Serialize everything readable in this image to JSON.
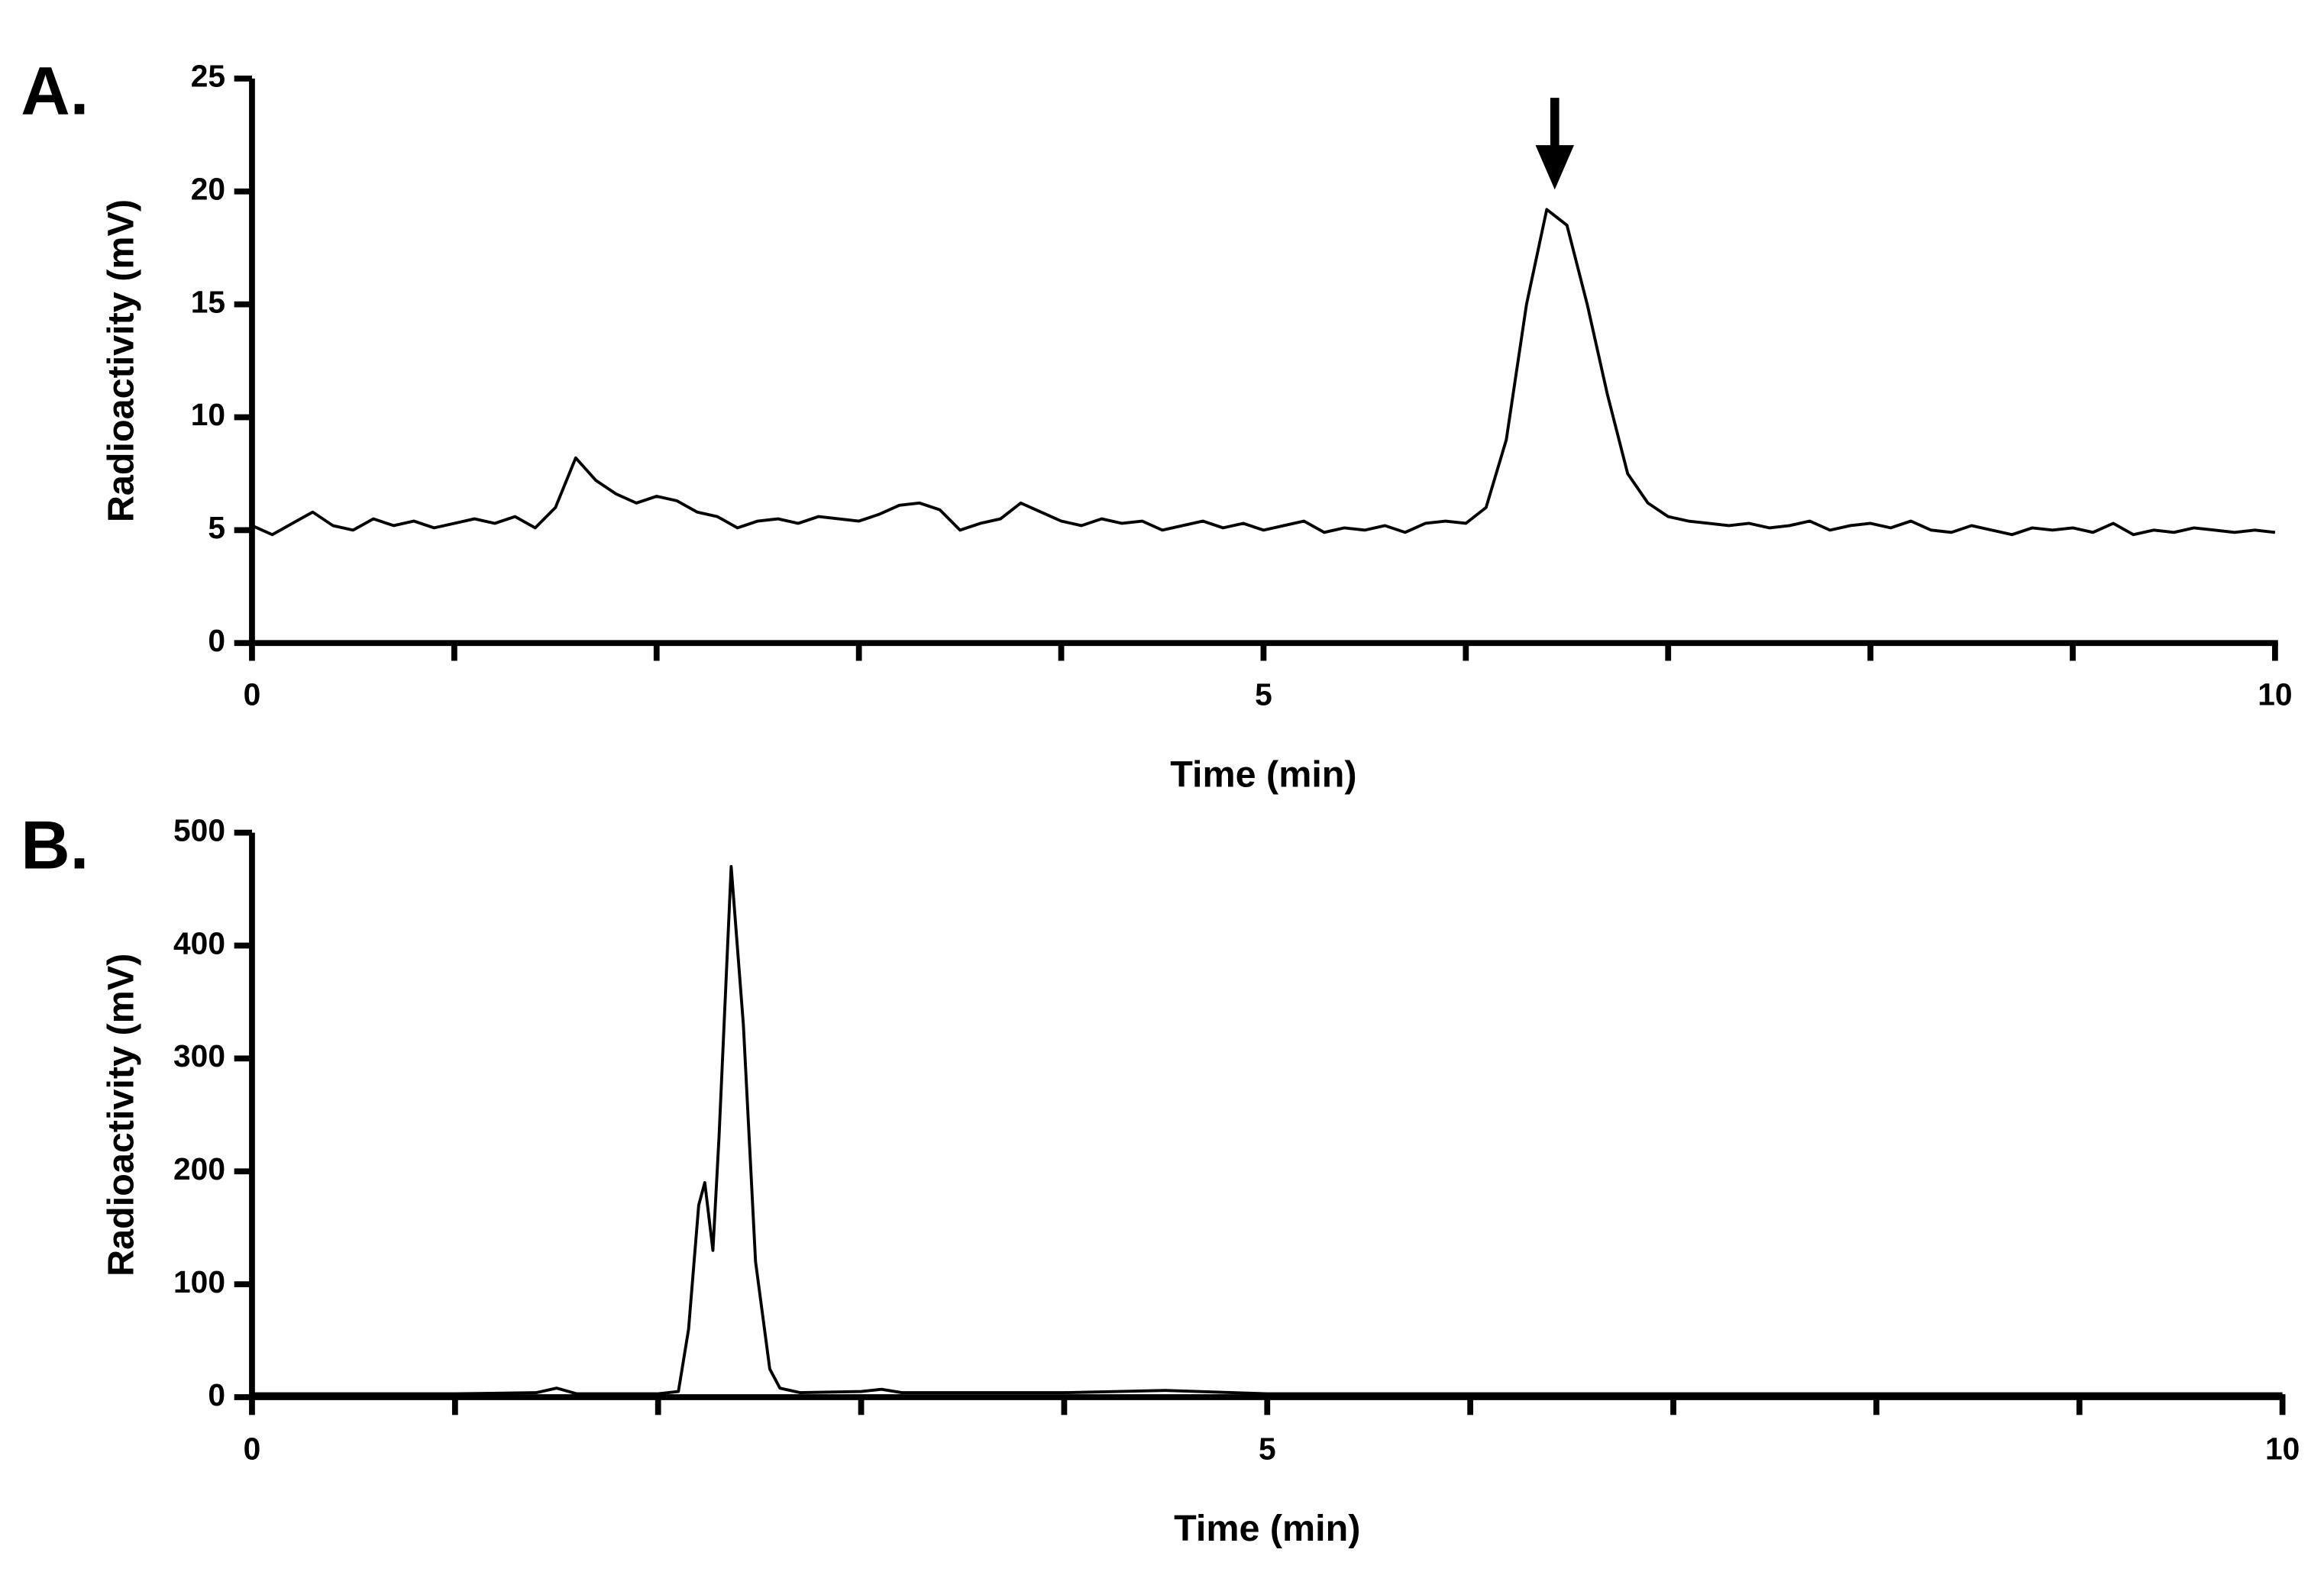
{
  "chart_data": [
    {
      "type": "line",
      "panel_label": "A.",
      "x_label": "Time (min)",
      "y_label": "Radioactivity (mV)",
      "xlim": [
        0,
        10
      ],
      "ylim": [
        0,
        25
      ],
      "xticks": [
        0,
        5,
        10
      ],
      "x_minor_ticks": [
        1,
        2,
        3,
        4,
        6,
        7,
        8,
        9
      ],
      "yticks": [
        0,
        5,
        10,
        15,
        20,
        25
      ],
      "series": [
        {
          "color": "#000000",
          "x": [
            0,
            0.1,
            0.2,
            0.3,
            0.4,
            0.5,
            0.6,
            0.7,
            0.8,
            0.9,
            1,
            1.1,
            1.2,
            1.3,
            1.4,
            1.5,
            1.6,
            1.7,
            1.8,
            1.9,
            2,
            2.1,
            2.2,
            2.3,
            2.4,
            2.5,
            2.6,
            2.7,
            2.8,
            2.9,
            3,
            3.1,
            3.2,
            3.3,
            3.4,
            3.5,
            3.6,
            3.7,
            3.8,
            3.9,
            4,
            4.1,
            4.2,
            4.3,
            4.4,
            4.5,
            4.6,
            4.7,
            4.8,
            4.9,
            5,
            5.1,
            5.2,
            5.3,
            5.4,
            5.5,
            5.6,
            5.7,
            5.8,
            5.9,
            6,
            6.1,
            6.2,
            6.3,
            6.4,
            6.5,
            6.6,
            6.7,
            6.8,
            6.9,
            7,
            7.1,
            7.2,
            7.3,
            7.4,
            7.5,
            7.6,
            7.7,
            7.8,
            7.9,
            8,
            8.1,
            8.2,
            8.3,
            8.4,
            8.5,
            8.6,
            8.7,
            8.8,
            8.9,
            9,
            9.1,
            9.2,
            9.3,
            9.4,
            9.5,
            9.6,
            9.7,
            9.8,
            9.9,
            10
          ],
          "values": [
            5.2,
            4.8,
            5.3,
            5.8,
            5.2,
            5.0,
            5.5,
            5.2,
            5.4,
            5.1,
            5.3,
            5.5,
            5.3,
            5.6,
            5.1,
            6.0,
            8.2,
            7.2,
            6.6,
            6.2,
            6.5,
            6.3,
            5.8,
            5.6,
            5.1,
            5.4,
            5.5,
            5.3,
            5.6,
            5.5,
            5.4,
            5.7,
            6.1,
            6.2,
            5.9,
            5.0,
            5.3,
            5.5,
            6.2,
            5.8,
            5.4,
            5.2,
            5.5,
            5.3,
            5.4,
            5.0,
            5.2,
            5.4,
            5.1,
            5.3,
            5.0,
            5.2,
            5.4,
            4.9,
            5.1,
            5.0,
            5.2,
            4.9,
            5.3,
            5.4,
            5.3,
            6.0,
            9.0,
            15.0,
            19.2,
            18.5,
            15.0,
            11.0,
            7.5,
            6.2,
            5.6,
            5.4,
            5.3,
            5.2,
            5.3,
            5.1,
            5.2,
            5.4,
            5.0,
            5.2,
            5.3,
            5.1,
            5.4,
            5.0,
            4.9,
            5.2,
            5.0,
            4.8,
            5.1,
            5.0,
            5.1,
            4.9,
            5.3,
            4.8,
            5.0,
            4.9,
            5.1,
            5.0,
            4.9,
            5.0,
            4.9
          ]
        }
      ]
    },
    {
      "type": "line",
      "panel_label": "B.",
      "x_label": "Time (min)",
      "y_label": "Radioactivity (mV)",
      "xlim": [
        0,
        10
      ],
      "ylim": [
        0,
        500
      ],
      "xticks": [
        0,
        5,
        10
      ],
      "x_minor_ticks": [
        1,
        2,
        3,
        4,
        6,
        7,
        8,
        9
      ],
      "yticks": [
        0,
        100,
        200,
        300,
        400,
        500
      ],
      "series": [
        {
          "color": "#000000",
          "x": [
            0,
            0.5,
            1.0,
            1.4,
            1.5,
            1.6,
            2.0,
            2.1,
            2.15,
            2.2,
            2.23,
            2.27,
            2.3,
            2.36,
            2.42,
            2.48,
            2.55,
            2.6,
            2.7,
            3.0,
            3.1,
            3.2,
            4.0,
            4.5,
            5.0,
            6,
            7,
            8,
            9,
            10
          ],
          "values": [
            3,
            3,
            3,
            4,
            8,
            3,
            3,
            5,
            60,
            170,
            190,
            130,
            230,
            470,
            330,
            120,
            25,
            8,
            4,
            5,
            7,
            4,
            4,
            6,
            3,
            3,
            3,
            3,
            3,
            3
          ]
        }
      ]
    }
  ]
}
